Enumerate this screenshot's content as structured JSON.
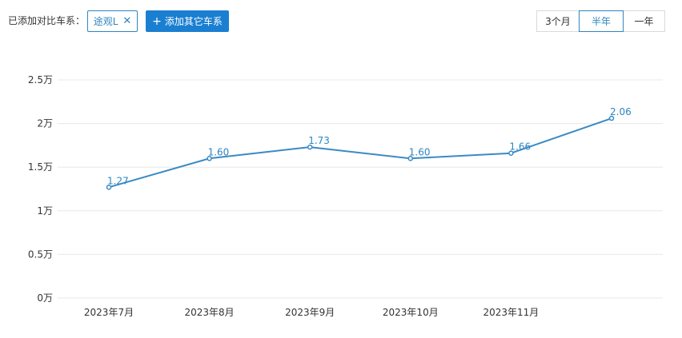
{
  "toolbar": {
    "compare_label": "已添加对比车系：",
    "series_tag": {
      "label": "途观L",
      "close_icon": "close-icon"
    },
    "add_button": {
      "icon": "plus-icon",
      "label": "添加其它车系"
    },
    "range_options": [
      {
        "label": "3个月",
        "active": false
      },
      {
        "label": "半年",
        "active": true
      },
      {
        "label": "一年",
        "active": false
      }
    ]
  },
  "colors": {
    "accent": "#2e86c1",
    "button_bg": "#1a7fd1",
    "line": "#3a8ac4",
    "grid": "#e8e8e8"
  },
  "chart_data": {
    "type": "line",
    "title": "",
    "xlabel": "",
    "ylabel": "",
    "x": [
      "2023年7月",
      "2023年8月",
      "2023年9月",
      "2023年10月",
      "2023年11月",
      ""
    ],
    "series": [
      {
        "values": [
          1.27,
          1.6,
          1.73,
          1.6,
          1.66,
          2.06
        ]
      }
    ],
    "data_labels": [
      "1.27",
      "1.60",
      "1.73",
      "1.60",
      "1.66",
      "2.06"
    ],
    "y_ticks": [
      {
        "value": 0,
        "label": "0万"
      },
      {
        "value": 0.5,
        "label": "0.5万"
      },
      {
        "value": 1,
        "label": "1万"
      },
      {
        "value": 1.5,
        "label": "1.5万"
      },
      {
        "value": 2,
        "label": "2万"
      },
      {
        "value": 2.5,
        "label": "2.5万"
      }
    ],
    "ylim": [
      0,
      2.5
    ],
    "grid": true,
    "legend": "none"
  }
}
